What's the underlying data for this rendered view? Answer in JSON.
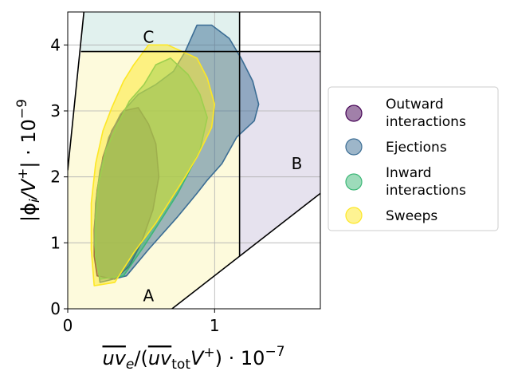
{
  "chart_data": {
    "type": "contour",
    "xlabel_parts": [
      "uv",
      "e",
      "/(",
      "uv",
      "tot",
      "V",
      "+",
      ") · 10",
      "−7"
    ],
    "ylabel_parts": [
      "|ϕ",
      "i",
      "/V",
      "+",
      "| · 10",
      "−9"
    ],
    "xlim": [
      0,
      1.72
    ],
    "ylim": [
      0,
      4.5
    ],
    "x_ticks": [
      {
        "value": 0,
        "label": "0"
      },
      {
        "value": 1,
        "label": "1"
      }
    ],
    "y_ticks": [
      {
        "value": 0,
        "label": "0"
      },
      {
        "value": 1,
        "label": "1"
      },
      {
        "value": 2,
        "label": "2"
      },
      {
        "value": 3,
        "label": "3"
      },
      {
        "value": 4,
        "label": "4"
      }
    ],
    "grid": true,
    "legend_position": "right",
    "regions": [
      {
        "label": "A",
        "label_pos": [
          0.55,
          0.2
        ],
        "color": "#fdfadc",
        "polygon": [
          [
            0,
            0
          ],
          [
            0.71,
            0
          ],
          [
            1.17,
            0.8
          ],
          [
            1.17,
            3.9
          ],
          [
            0.09,
            3.9
          ],
          [
            0,
            2.1
          ]
        ]
      },
      {
        "label": "B",
        "label_pos": [
          1.56,
          2.2
        ],
        "color": "#e6e2ee",
        "polygon": [
          [
            1.17,
            0.8
          ],
          [
            1.72,
            1.75
          ],
          [
            1.72,
            3.9
          ],
          [
            1.17,
            3.9
          ]
        ]
      },
      {
        "label": "C",
        "label_pos": [
          0.55,
          4.12
        ],
        "color": "#e1f1ee",
        "polygon": [
          [
            0.09,
            3.9
          ],
          [
            1.17,
            3.9
          ],
          [
            1.17,
            4.5
          ],
          [
            0.11,
            4.5
          ]
        ]
      }
    ],
    "boundaries": [
      [
        [
          0,
          2.1
        ],
        [
          0.11,
          4.5
        ]
      ],
      [
        [
          0.09,
          3.9
        ],
        [
          1.72,
          3.9
        ]
      ],
      [
        [
          1.17,
          0.8
        ],
        [
          1.17,
          4.5
        ]
      ],
      [
        [
          0.71,
          0
        ],
        [
          1.72,
          1.75
        ]
      ]
    ],
    "series": [
      {
        "name": "Outward interactions",
        "color": "#440154",
        "outline": [
          [
            0.2,
            0.5
          ],
          [
            0.32,
            0.45
          ],
          [
            0.42,
            0.65
          ],
          [
            0.5,
            1.0
          ],
          [
            0.58,
            1.5
          ],
          [
            0.62,
            2.0
          ],
          [
            0.6,
            2.5
          ],
          [
            0.55,
            2.8
          ],
          [
            0.48,
            3.05
          ],
          [
            0.38,
            3.0
          ],
          [
            0.3,
            2.7
          ],
          [
            0.24,
            2.3
          ],
          [
            0.2,
            1.8
          ],
          [
            0.18,
            1.2
          ],
          [
            0.18,
            0.8
          ]
        ]
      },
      {
        "name": "Ejections",
        "color": "#3b6d94",
        "outline": [
          [
            0.22,
            0.4
          ],
          [
            0.4,
            0.5
          ],
          [
            0.55,
            0.9
          ],
          [
            0.75,
            1.4
          ],
          [
            0.88,
            1.75
          ],
          [
            0.95,
            1.95
          ],
          [
            1.05,
            2.2
          ],
          [
            1.15,
            2.6
          ],
          [
            1.27,
            2.85
          ],
          [
            1.3,
            3.1
          ],
          [
            1.26,
            3.45
          ],
          [
            1.18,
            3.8
          ],
          [
            1.1,
            4.1
          ],
          [
            0.98,
            4.3
          ],
          [
            0.88,
            4.3
          ],
          [
            0.8,
            3.9
          ],
          [
            0.72,
            3.6
          ],
          [
            0.6,
            3.4
          ],
          [
            0.48,
            3.25
          ],
          [
            0.36,
            2.95
          ],
          [
            0.28,
            2.6
          ],
          [
            0.22,
            2.1
          ],
          [
            0.19,
            1.6
          ],
          [
            0.18,
            1.0
          ]
        ]
      },
      {
        "name": "Inward interactions",
        "color": "#3cb776",
        "outline": [
          [
            0.22,
            0.45
          ],
          [
            0.38,
            0.5
          ],
          [
            0.52,
            0.95
          ],
          [
            0.65,
            1.4
          ],
          [
            0.75,
            1.75
          ],
          [
            0.82,
            2.05
          ],
          [
            0.9,
            2.4
          ],
          [
            0.95,
            2.9
          ],
          [
            0.9,
            3.25
          ],
          [
            0.82,
            3.55
          ],
          [
            0.7,
            3.8
          ],
          [
            0.6,
            3.7
          ],
          [
            0.52,
            3.4
          ],
          [
            0.42,
            3.15
          ],
          [
            0.34,
            2.8
          ],
          [
            0.26,
            2.4
          ],
          [
            0.21,
            1.9
          ],
          [
            0.19,
            1.3
          ],
          [
            0.19,
            0.8
          ]
        ]
      },
      {
        "name": "Sweeps",
        "color": "#fde725",
        "outline": [
          [
            0.18,
            0.35
          ],
          [
            0.32,
            0.4
          ],
          [
            0.45,
            0.85
          ],
          [
            0.6,
            1.3
          ],
          [
            0.7,
            1.65
          ],
          [
            0.8,
            2.0
          ],
          [
            0.88,
            2.3
          ],
          [
            0.98,
            2.75
          ],
          [
            1.0,
            3.1
          ],
          [
            0.95,
            3.5
          ],
          [
            0.88,
            3.8
          ],
          [
            0.78,
            3.9
          ],
          [
            0.68,
            4.0
          ],
          [
            0.55,
            4.0
          ],
          [
            0.45,
            3.7
          ],
          [
            0.38,
            3.45
          ],
          [
            0.3,
            3.05
          ],
          [
            0.24,
            2.7
          ],
          [
            0.19,
            2.2
          ],
          [
            0.16,
            1.6
          ],
          [
            0.16,
            0.9
          ]
        ]
      }
    ]
  }
}
